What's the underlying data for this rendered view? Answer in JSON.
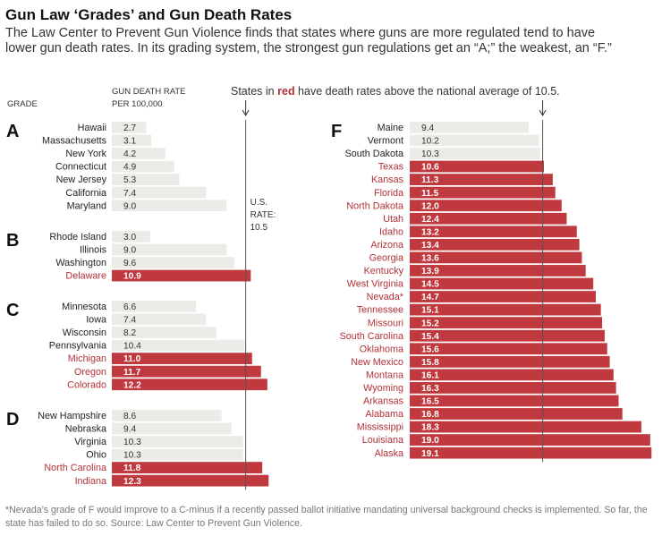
{
  "title": "Gun Law ‘Grades’ and Gun Death Rates",
  "subtitle": "The Law Center to Prevent Gun Violence finds that states where guns are more regulated tend to have lower gun death rates. In its grading system, the strongest gun regulations get an “A;” the weakest, an “F.”",
  "footnote": "*Nevada’s grade of F would improve to a C-minus if a recently passed ballot initiative mandating universal background checks is implemented. So far, the state has failed to do so. Source: Law Center to Prevent Gun Violence.",
  "colors": {
    "above": "#c0393e",
    "below": "#ecebe7",
    "text_above": "#ffffff",
    "state_red": "#b13137",
    "line": "#555555"
  },
  "chart_data": {
    "type": "bar",
    "orientation": "horizontal",
    "title": "Gun Law ‘Grades’ and Gun Death Rates",
    "headers": {
      "grade": "GRADE",
      "rate_line1": "GUN DEATH RATE",
      "rate_line2": "PER 100,000"
    },
    "annotation": {
      "prefix": "States in ",
      "highlight": "red",
      "suffix": " have death rates above the national average of 10.5."
    },
    "reference": {
      "value": 10.5,
      "label_lines": [
        "U.S.",
        "RATE:",
        "10.5"
      ]
    },
    "xlim": [
      0,
      19.1
    ],
    "groups": [
      {
        "grade": "A",
        "states": [
          {
            "name": "Hawaii",
            "value": 2.7
          },
          {
            "name": "Massachusetts",
            "value": 3.1
          },
          {
            "name": "New York",
            "value": 4.2
          },
          {
            "name": "Connecticut",
            "value": 4.9
          },
          {
            "name": "New Jersey",
            "value": 5.3
          },
          {
            "name": "California",
            "value": 7.4
          },
          {
            "name": "Maryland",
            "value": 9.0
          }
        ]
      },
      {
        "grade": "B",
        "states": [
          {
            "name": "Rhode Island",
            "value": 3.0
          },
          {
            "name": "Illinois",
            "value": 9.0
          },
          {
            "name": "Washington",
            "value": 9.6
          },
          {
            "name": "Delaware",
            "value": 10.9
          }
        ]
      },
      {
        "grade": "C",
        "states": [
          {
            "name": "Minnesota",
            "value": 6.6
          },
          {
            "name": "Iowa",
            "value": 7.4
          },
          {
            "name": "Wisconsin",
            "value": 8.2
          },
          {
            "name": "Pennsylvania",
            "value": 10.4
          },
          {
            "name": "Michigan",
            "value": 11.0
          },
          {
            "name": "Oregon",
            "value": 11.7
          },
          {
            "name": "Colorado",
            "value": 12.2
          }
        ]
      },
      {
        "grade": "D",
        "states": [
          {
            "name": "New Hampshire",
            "value": 8.6
          },
          {
            "name": "Nebraska",
            "value": 9.4
          },
          {
            "name": "Virginia",
            "value": 10.3
          },
          {
            "name": "Ohio",
            "value": 10.3
          },
          {
            "name": "North Carolina",
            "value": 11.8
          },
          {
            "name": "Indiana",
            "value": 12.3
          }
        ]
      },
      {
        "grade": "F",
        "states": [
          {
            "name": "Maine",
            "value": 9.4
          },
          {
            "name": "Vermont",
            "value": 10.2
          },
          {
            "name": "South Dakota",
            "value": 10.3
          },
          {
            "name": "Texas",
            "value": 10.6
          },
          {
            "name": "Kansas",
            "value": 11.3
          },
          {
            "name": "Florida",
            "value": 11.5
          },
          {
            "name": "North Dakota",
            "value": 12.0
          },
          {
            "name": "Utah",
            "value": 12.4
          },
          {
            "name": "Idaho",
            "value": 13.2
          },
          {
            "name": "Arizona",
            "value": 13.4
          },
          {
            "name": "Georgia",
            "value": 13.6
          },
          {
            "name": "Kentucky",
            "value": 13.9
          },
          {
            "name": "West Virginia",
            "value": 14.5
          },
          {
            "name": "Nevada*",
            "value": 14.7
          },
          {
            "name": "Tennessee",
            "value": 15.1
          },
          {
            "name": "Missouri",
            "value": 15.2
          },
          {
            "name": "South Carolina",
            "value": 15.4
          },
          {
            "name": "Oklahoma",
            "value": 15.6
          },
          {
            "name": "New Mexico",
            "value": 15.8
          },
          {
            "name": "Montana",
            "value": 16.1
          },
          {
            "name": "Wyoming",
            "value": 16.3
          },
          {
            "name": "Arkansas",
            "value": 16.5
          },
          {
            "name": "Alabama",
            "value": 16.8
          },
          {
            "name": "Mississippi",
            "value": 18.3
          },
          {
            "name": "Louisiana",
            "value": 19.0
          },
          {
            "name": "Alaska",
            "value": 19.1
          }
        ]
      }
    ]
  }
}
